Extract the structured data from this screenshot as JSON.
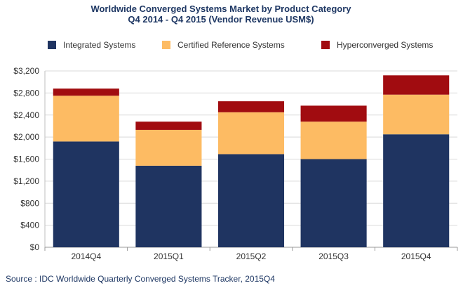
{
  "chart_data": {
    "type": "bar",
    "stacked": true,
    "title": "Worldwide Converged Systems Market by Product Category",
    "subtitle": "Q4 2014 - Q4 2015 (Vendor Revenue USM$)",
    "categories": [
      "2014Q4",
      "2015Q1",
      "2015Q2",
      "2015Q3",
      "2015Q4"
    ],
    "series": [
      {
        "name": "Integrated Systems",
        "color": "#1f3461",
        "values": [
          1920,
          1480,
          1690,
          1600,
          2050
        ]
      },
      {
        "name": "Certified Reference Systems",
        "color": "#fdbb63",
        "values": [
          830,
          650,
          760,
          680,
          720
        ]
      },
      {
        "name": "Hyperconverged Systems",
        "color": "#a10c10",
        "values": [
          130,
          150,
          200,
          290,
          350
        ]
      }
    ],
    "ylim": [
      0,
      3200
    ],
    "yticks": [
      "$0",
      "$400",
      "$800",
      "$1,200",
      "$1,600",
      "$2,000",
      "$2,400",
      "$2,800",
      "$3,200"
    ],
    "ytick_values": [
      0,
      400,
      800,
      1200,
      1600,
      2000,
      2400,
      2800,
      3200
    ],
    "grid": true,
    "legend_position": "top",
    "source": "Source : IDC Worldwide Quarterly Converged Systems Tracker, 2015Q4"
  }
}
